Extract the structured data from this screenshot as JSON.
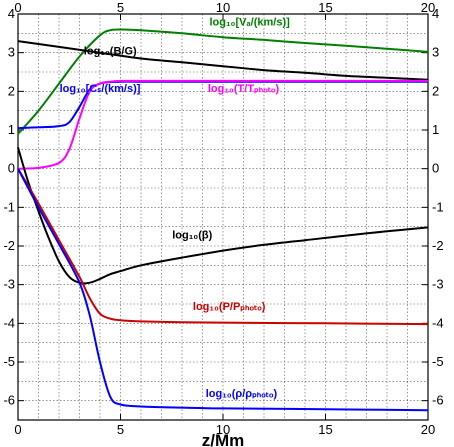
{
  "chart_data": {
    "type": "line",
    "xlabel": "z/Mm",
    "ylabel": "",
    "xlim": [
      0,
      20
    ],
    "ylim": [
      -6.5,
      4
    ],
    "x_ticks": [
      "0",
      "5",
      "10",
      "15",
      "20"
    ],
    "y_ticks": [
      "-6",
      "-5",
      "-4",
      "-3",
      "-2",
      "-1",
      "0",
      "1",
      "2",
      "3",
      "4"
    ],
    "grid": true,
    "series": [
      {
        "name": "log₁₀[Vₐ/(km/s)]",
        "color": "#008000",
        "x": [
          0,
          1,
          2,
          3,
          4,
          4.5,
          5,
          6,
          8,
          10,
          12,
          14,
          16,
          18,
          20
        ],
        "y": [
          0.9,
          1.5,
          2.2,
          2.9,
          3.45,
          3.58,
          3.6,
          3.58,
          3.5,
          3.4,
          3.33,
          3.25,
          3.18,
          3.1,
          3.02
        ]
      },
      {
        "name": "log₁₀(B/G)",
        "color": "#000000",
        "x": [
          0,
          2,
          4,
          6,
          8,
          10,
          12,
          14,
          16,
          18,
          20
        ],
        "y": [
          3.3,
          3.15,
          3.0,
          2.85,
          2.75,
          2.65,
          2.55,
          2.48,
          2.4,
          2.35,
          2.3
        ]
      },
      {
        "name": "log₁₀[Cₛ/(km/s)]",
        "color": "#0000ff",
        "x": [
          0,
          1,
          2,
          2.5,
          3,
          3.5,
          4,
          4.5,
          5,
          6,
          10,
          15,
          20
        ],
        "y": [
          1.05,
          1.07,
          1.1,
          1.2,
          1.6,
          2.05,
          2.2,
          2.24,
          2.25,
          2.25,
          2.25,
          2.25,
          2.25
        ]
      },
      {
        "name": "log₁₀(T/Tₚₕₒₜₒ)",
        "color": "#ff00ff",
        "x": [
          0,
          1,
          2,
          2.5,
          3,
          3.5,
          4,
          4.5,
          5,
          6,
          10,
          15,
          20
        ],
        "y": [
          0,
          0.02,
          0.15,
          0.5,
          1.3,
          2.0,
          2.2,
          2.25,
          2.27,
          2.27,
          2.27,
          2.27,
          2.27
        ]
      },
      {
        "name": "log₁₀(β)",
        "color": "#000000",
        "x": [
          0,
          0.5,
          1,
          1.5,
          2,
          2.5,
          3,
          3.5,
          4,
          4.5,
          5,
          6,
          8,
          10,
          12,
          14,
          16,
          18,
          20
        ],
        "y": [
          0.55,
          -0.35,
          -1.1,
          -1.8,
          -2.4,
          -2.8,
          -2.95,
          -2.95,
          -2.85,
          -2.73,
          -2.65,
          -2.5,
          -2.3,
          -2.12,
          -1.97,
          -1.85,
          -1.73,
          -1.62,
          -1.52
        ]
      },
      {
        "name": "log₁₀(P/Pₚₕₒₜₒ)",
        "color": "#cc0000",
        "x": [
          0,
          1,
          2,
          3,
          3.5,
          4,
          4.5,
          5,
          6,
          8,
          10,
          15,
          20
        ],
        "y": [
          0,
          -0.9,
          -1.85,
          -2.8,
          -3.35,
          -3.75,
          -3.88,
          -3.92,
          -3.95,
          -3.97,
          -3.98,
          -4.0,
          -4.02
        ]
      },
      {
        "name": "log₁₀(ρ/ρₚₕₒₜₒ)",
        "color": "#0000ff",
        "x": [
          0,
          1,
          2,
          3,
          3.5,
          4,
          4.5,
          5,
          6,
          8,
          10,
          15,
          20
        ],
        "y": [
          0,
          -1.0,
          -1.95,
          -2.95,
          -3.8,
          -5.0,
          -5.9,
          -6.1,
          -6.15,
          -6.18,
          -6.2,
          -6.22,
          -6.25
        ]
      }
    ],
    "annotations": [
      {
        "name": "log₁₀[Vₐ/(km/s)]",
        "color": "#008000",
        "x": 11.3,
        "y": 3.7
      },
      {
        "name": "log₁₀(B/G)",
        "color": "#000000",
        "x": 4.5,
        "y": 2.95
      },
      {
        "name": "log₁₀[Cₛ/(km/s)]",
        "color": "#0000ff",
        "x": 4.0,
        "y": 1.98
      },
      {
        "name": "log₁₀(T/Tₚₕₒₜₒ)",
        "color": "#ff00ff",
        "x": 11.0,
        "y": 1.98
      },
      {
        "name": "log₁₀(β)",
        "color": "#000000",
        "x": 8.5,
        "y": -1.8
      },
      {
        "name": "log₁₀(P/Pₚₕₒₜₒ)",
        "color": "#cc0000",
        "x": 10.3,
        "y": -3.65
      },
      {
        "name": "log₁₀(ρ/ρₚₕₒₜₒ)",
        "color": "#0000ff",
        "x": 10.9,
        "y": -5.9
      }
    ]
  }
}
